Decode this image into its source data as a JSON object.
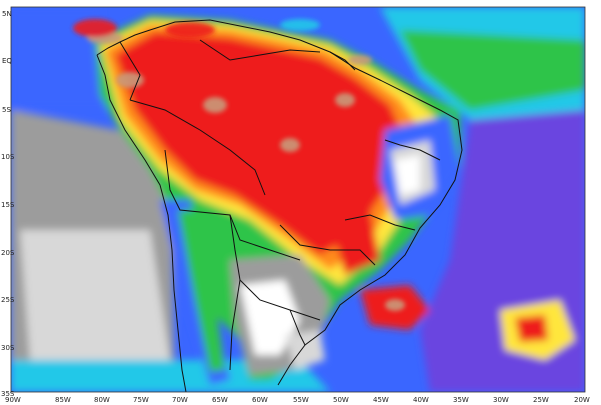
{
  "map": {
    "title": "",
    "lat_labels": [
      "5N",
      "EQ",
      "5S",
      "10S",
      "15S",
      "20S",
      "25S",
      "30S",
      "35S"
    ],
    "lon_labels": [
      "90W",
      "85W",
      "80W",
      "75W",
      "70W",
      "65W",
      "60W",
      "55W",
      "50W",
      "45W",
      "40W",
      "35W",
      "30W",
      "25W",
      "20W"
    ],
    "colors": {
      "red": "#ee1c1c",
      "orange": "#ff8c1a",
      "yellow": "#ffe63c",
      "green": "#2ec44a",
      "cyan": "#22c8e8",
      "blue": "#3a66ff",
      "purple": "#6a44e0",
      "gray": "#9c9c9c",
      "lightgray": "#d8d8d8",
      "tan": "#c99a7a"
    }
  }
}
